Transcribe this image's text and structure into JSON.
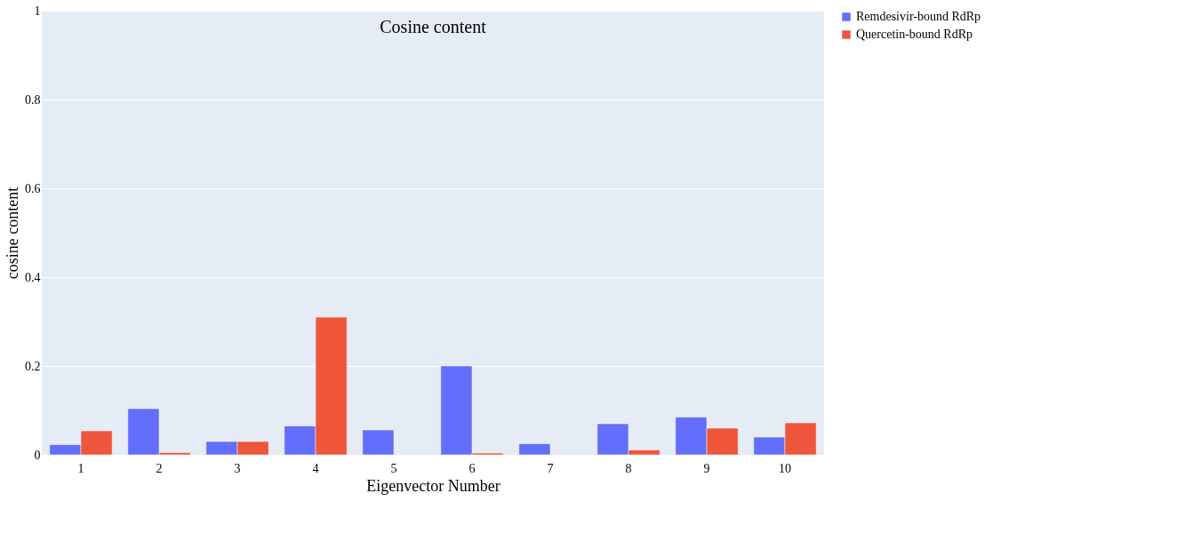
{
  "chart_data": {
    "type": "bar",
    "title": "Cosine content",
    "xlabel": "Eigenvector Number",
    "ylabel": "cosine content",
    "categories": [
      "1",
      "2",
      "3",
      "4",
      "5",
      "6",
      "7",
      "8",
      "9",
      "10"
    ],
    "series": [
      {
        "name": "Remdesivir-bound RdRp",
        "color": "#636efa",
        "values": [
          0.023,
          0.104,
          0.03,
          0.065,
          0.056,
          0.2,
          0.025,
          0.07,
          0.085,
          0.04
        ]
      },
      {
        "name": "Quercetin-bound RdRp",
        "color": "#ef553b",
        "values": [
          0.054,
          0.005,
          0.03,
          0.31,
          null,
          0.004,
          null,
          0.011,
          0.06,
          0.072
        ]
      }
    ],
    "ylim": [
      0,
      1
    ],
    "yticks": [
      0,
      0.2,
      0.4,
      0.6,
      0.8,
      1
    ],
    "grid": "y",
    "legend": "top right"
  }
}
